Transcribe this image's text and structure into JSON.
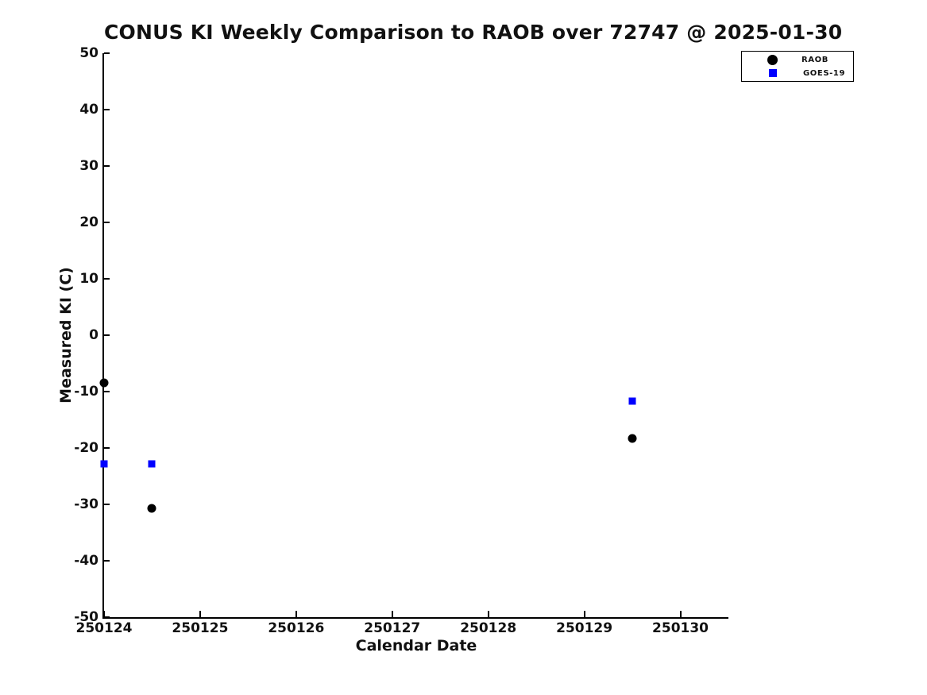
{
  "title": "CONUS KI Weekly Comparison to RAOB over 72747 @ 2025-01-30",
  "colors": {
    "raob": "#000000",
    "goes19": "#0000ff",
    "axis": "#000000",
    "background": "#ffffff"
  },
  "legend": {
    "entries": [
      {
        "label": "RAOB",
        "marker": "circle",
        "color": "#000000"
      },
      {
        "label": "GOES-19",
        "marker": "square",
        "color": "#0000ff"
      }
    ]
  },
  "chart_data": {
    "type": "scatter",
    "title": "CONUS KI Weekly Comparison to RAOB over 72747 @ 2025-01-30",
    "xlabel": "Calendar Date",
    "ylabel": "Measured KI (C)",
    "xlim": [
      250124,
      250130.5
    ],
    "ylim": [
      -50,
      50
    ],
    "xticks": [
      250124,
      250125,
      250126,
      250127,
      250128,
      250129,
      250130
    ],
    "yticks": [
      50,
      40,
      30,
      20,
      10,
      0,
      -10,
      -20,
      -30,
      -40,
      -50
    ],
    "grid": false,
    "legend_position": "top-right",
    "series": [
      {
        "name": "RAOB",
        "marker": "circle",
        "color": "#000000",
        "points": [
          [
            250124.0,
            -8.5
          ],
          [
            250124.5,
            -30.7
          ],
          [
            250129.5,
            -18.3
          ]
        ]
      },
      {
        "name": "GOES-19",
        "marker": "square",
        "color": "#0000ff",
        "points": [
          [
            250124.0,
            -22.8
          ],
          [
            250124.5,
            -22.8
          ],
          [
            250129.5,
            -11.7
          ]
        ]
      }
    ]
  }
}
